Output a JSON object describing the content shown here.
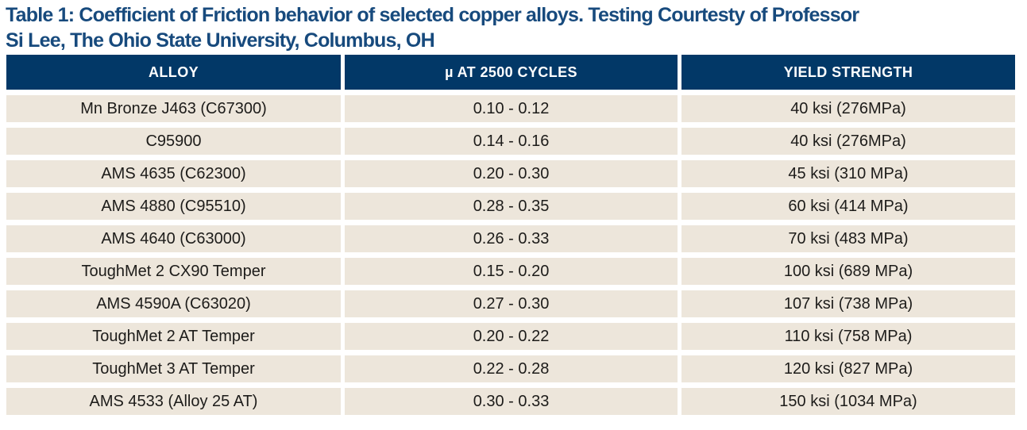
{
  "title": {
    "line1": "Table 1: Coefficient of Friction behavior of selected copper alloys. Testing Courtesty of Professor",
    "line2": "Si Lee, The Ohio State University, Columbus, OH"
  },
  "table": {
    "columns": [
      "ALLOY",
      "µ AT 2500 CYCLES",
      "YIELD STRENGTH"
    ],
    "rows": [
      [
        "Mn Bronze J463 (C67300)",
        "0.10 - 0.12",
        "40 ksi (276MPa)"
      ],
      [
        "C95900",
        "0.14 - 0.16",
        "40 ksi (276MPa)"
      ],
      [
        "AMS 4635 (C62300)",
        "0.20 - 0.30",
        "45 ksi (310 MPa)"
      ],
      [
        "AMS 4880 (C95510)",
        "0.28 - 0.35",
        "60 ksi (414 MPa)"
      ],
      [
        "AMS 4640 (C63000)",
        "0.26 - 0.33",
        "70 ksi (483 MPa)"
      ],
      [
        "ToughMet 2 CX90 Temper",
        "0.15 - 0.20",
        "100 ksi (689 MPa)"
      ],
      [
        "AMS 4590A (C63020)",
        "0.27 - 0.30",
        "107 ksi (738 MPa)"
      ],
      [
        "ToughMet 2 AT Temper",
        "0.20 - 0.22",
        "110 ksi (758 MPa)"
      ],
      [
        "ToughMet 3 AT Temper",
        "0.22 - 0.28",
        "120 ksi (827 MPa)"
      ],
      [
        "AMS 4533 (Alloy 25 AT)",
        "0.30 - 0.33",
        "150 ksi (1034 MPa)"
      ]
    ]
  },
  "chart_data": {
    "type": "table",
    "title": "Table 1: Coefficient of Friction behavior of selected copper alloys. Testing Courtesty of Professor Si Lee, The Ohio State University, Columbus, OH",
    "columns": [
      "ALLOY",
      "µ AT 2500 CYCLES",
      "YIELD STRENGTH"
    ],
    "rows": [
      {
        "alloy": "Mn Bronze J463 (C67300)",
        "mu_at_2500_cycles": "0.10 - 0.12",
        "yield_strength": "40 ksi (276MPa)"
      },
      {
        "alloy": "C95900",
        "mu_at_2500_cycles": "0.14 - 0.16",
        "yield_strength": "40 ksi (276MPa)"
      },
      {
        "alloy": "AMS 4635 (C62300)",
        "mu_at_2500_cycles": "0.20 - 0.30",
        "yield_strength": "45 ksi (310 MPa)"
      },
      {
        "alloy": "AMS 4880 (C95510)",
        "mu_at_2500_cycles": "0.28 - 0.35",
        "yield_strength": "60 ksi (414 MPa)"
      },
      {
        "alloy": "AMS 4640 (C63000)",
        "mu_at_2500_cycles": "0.26 - 0.33",
        "yield_strength": "70 ksi (483 MPa)"
      },
      {
        "alloy": "ToughMet 2 CX90 Temper",
        "mu_at_2500_cycles": "0.15 - 0.20",
        "yield_strength": "100 ksi (689 MPa)"
      },
      {
        "alloy": "AMS 4590A (C63020)",
        "mu_at_2500_cycles": "0.27 - 0.30",
        "yield_strength": "107 ksi (738 MPa)"
      },
      {
        "alloy": "ToughMet 2 AT Temper",
        "mu_at_2500_cycles": "0.20 - 0.22",
        "yield_strength": "110 ksi (758 MPa)"
      },
      {
        "alloy": "ToughMet 3 AT Temper",
        "mu_at_2500_cycles": "0.22 - 0.28",
        "yield_strength": "120 ksi (827 MPa)"
      },
      {
        "alloy": "AMS 4533 (Alloy 25 AT)",
        "mu_at_2500_cycles": "0.30 - 0.33",
        "yield_strength": "150 ksi (1034 MPa)"
      }
    ]
  },
  "colors": {
    "header_bg": "#023867",
    "title_text": "#174a7d",
    "row_bg": "#ede6db",
    "body_text": "#1d1c1a"
  }
}
